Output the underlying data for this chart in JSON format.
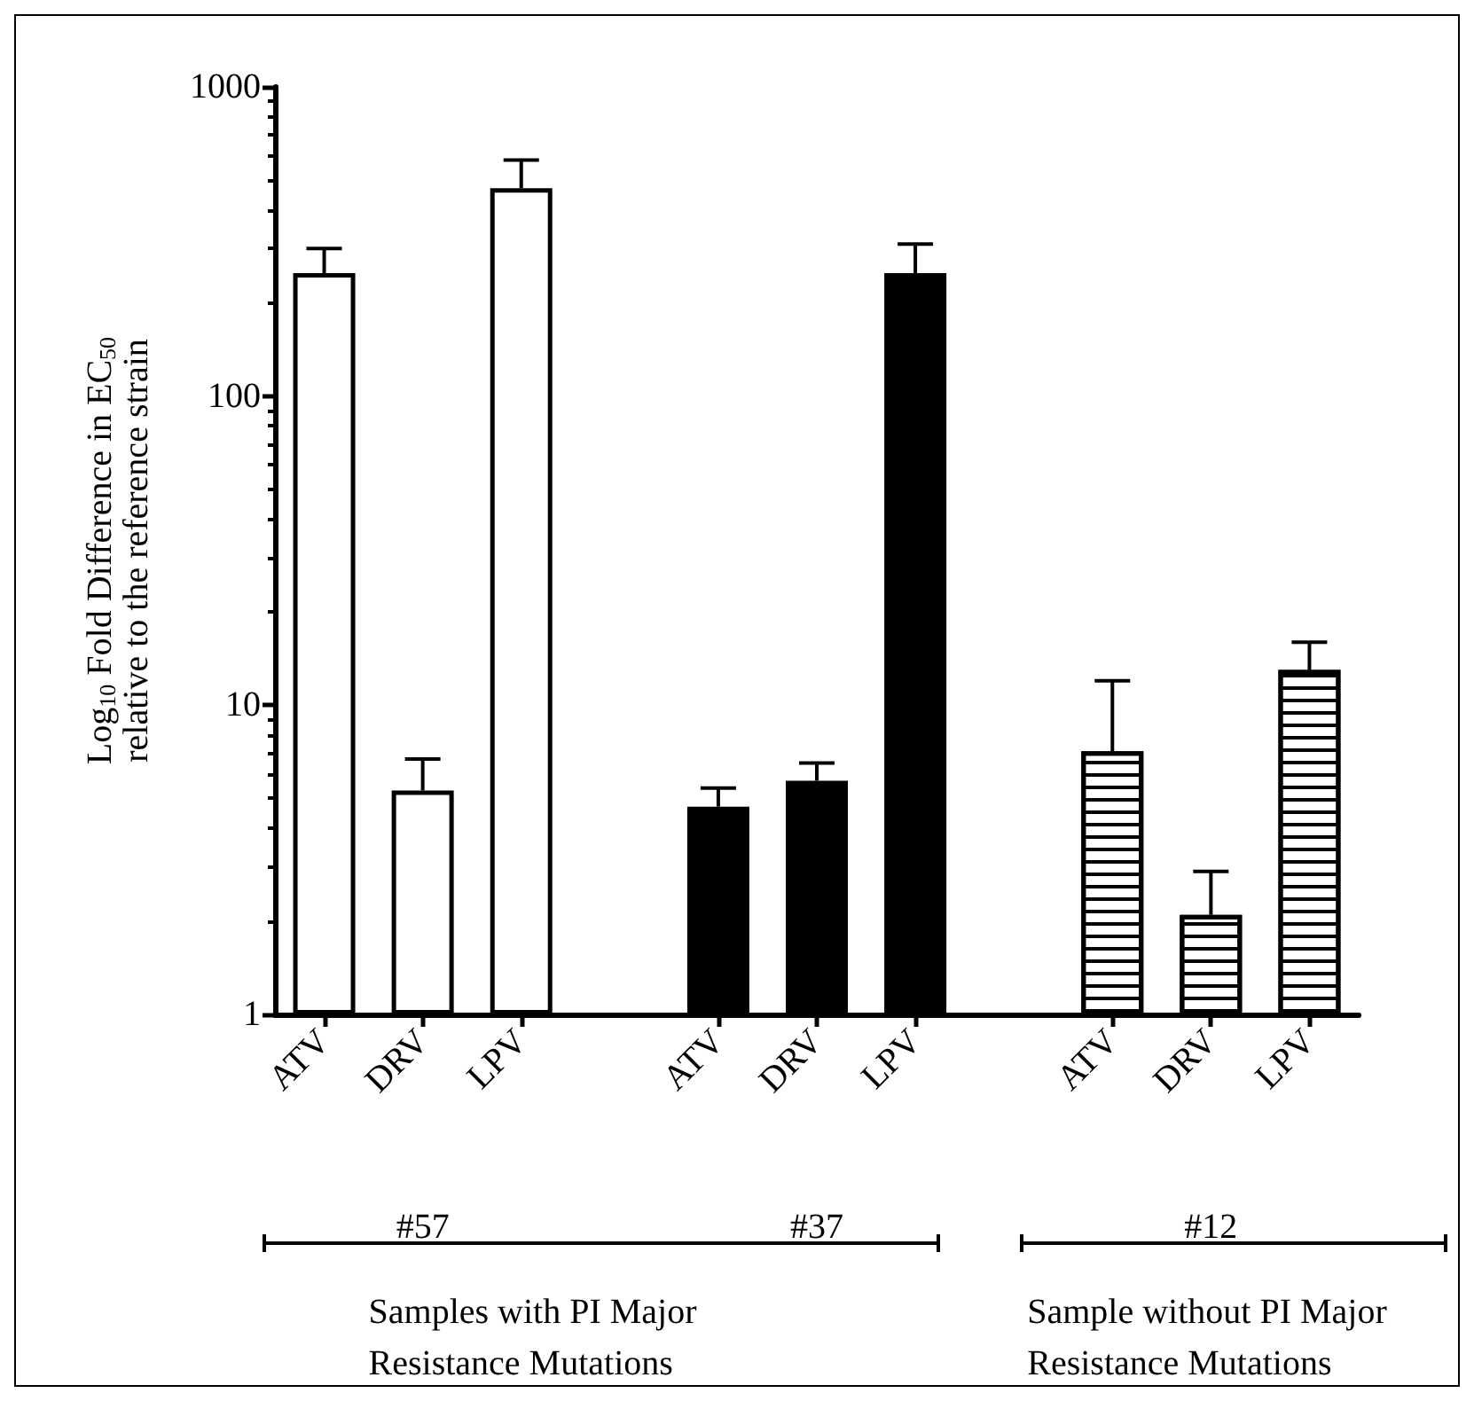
{
  "chart_data": {
    "type": "bar",
    "ylabel": "Log$_{10}$ Fold Difference in EC$_{50}$\nrelative to the reference strain",
    "categories": [
      "ATV",
      "DRV",
      "LPV",
      null,
      "ATV",
      "DRV",
      "LPV",
      null,
      "ATV",
      "DRV",
      "LPV"
    ],
    "series": [
      {
        "color": "#ffffff",
        "values": [
          250,
          5.3,
          470,
          null,
          null,
          null,
          null,
          null,
          null,
          null,
          null
        ],
        "errors": [
          [
            250,
            300
          ],
          [
            5.3,
            6.7
          ],
          [
            470,
            580
          ],
          null,
          null,
          null,
          null,
          null,
          null,
          null,
          null
        ]
      },
      {
        "color": "#000000",
        "values": [
          null,
          null,
          null,
          null,
          4.7,
          5.7,
          250,
          null,
          null,
          null,
          null
        ],
        "errors": [
          null,
          null,
          null,
          null,
          [
            4.7,
            5.4
          ],
          [
            5.7,
            6.5
          ],
          [
            250,
            310
          ],
          null,
          null,
          null,
          null
        ]
      },
      {
        "color": "#ffffff",
        "values": [
          null,
          null,
          null,
          null,
          null,
          null,
          null,
          null,
          7.1,
          2.1,
          13
        ],
        "errors": [
          null,
          null,
          null,
          null,
          null,
          null,
          null,
          null,
          [
            7.1,
            12
          ],
          [
            2.1,
            2.9
          ],
          [
            13,
            16
          ]
        ]
      }
    ],
    "ylim": [
      1,
      1000
    ],
    "yticks": [
      1,
      10,
      100,
      1000
    ],
    "log": true,
    "grid": false,
    "annotations": [
      "#57",
      "#37",
      "#12",
      "Samples with PI Major\nResistance Mutations",
      "Sample without PI Major\nResistance Mutations"
    ]
  }
}
